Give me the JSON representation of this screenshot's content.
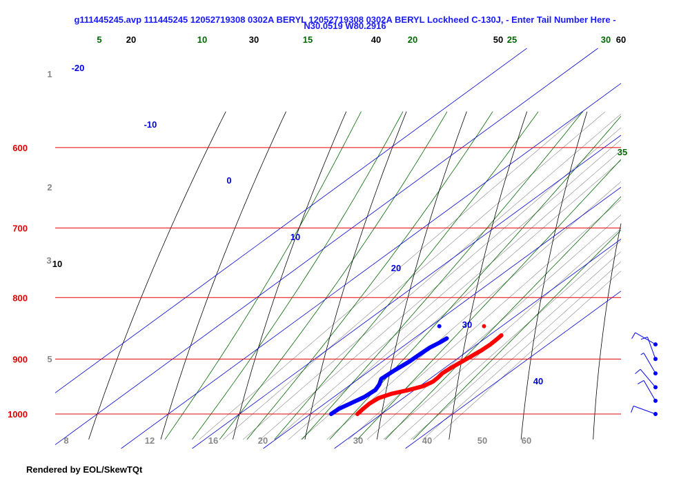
{
  "header": {
    "title_line1": "g111445245.avp 111445245 12052719308 0302A BERYL 12052719308 0302A BERYL Lockheed C-130J, - Enter Tail Number Here -",
    "title_line2": "N30.0519 W80.2916"
  },
  "footer": {
    "text": "Rendered by EOL/SkewTQt"
  },
  "colors": {
    "isobar": "#e00000",
    "isotherm": "#0000dd",
    "dry_adiabat": "#000000",
    "moist_adiabat": "#006600",
    "mixing_ratio": "#888888",
    "temperature": "#ff0000",
    "dewpoint": "#0000ff",
    "wind": "#0000ff"
  },
  "chart_data": {
    "type": "line",
    "xlabel": "",
    "ylabel": "",
    "ylim": [
      1020,
      600
    ],
    "isobars": [
      {
        "p": 600,
        "label": "600"
      },
      {
        "p": 700,
        "label": "700"
      },
      {
        "p": 800,
        "label": "800"
      },
      {
        "p": 900,
        "label": "900"
      },
      {
        "p": 1000,
        "label": "1000"
      }
    ],
    "isotherms": [
      -20,
      -10,
      0,
      10,
      20,
      30,
      40
    ],
    "isotherm_labels": [
      "-20",
      "-10",
      "0",
      "10",
      "20",
      "30",
      "40"
    ],
    "dry_adiabat_labels": [
      {
        "label": "20",
        "at": "top"
      },
      {
        "label": "30",
        "at": "top"
      },
      {
        "label": "40",
        "at": "top"
      },
      {
        "label": "50",
        "at": "top"
      },
      {
        "label": "60",
        "at": "top"
      },
      {
        "label": "10",
        "at": "left"
      }
    ],
    "moist_adiabat_labels": [
      {
        "label": "5",
        "at": "top"
      },
      {
        "label": "10",
        "at": "top"
      },
      {
        "label": "15",
        "at": "top"
      },
      {
        "label": "20",
        "at": "top"
      },
      {
        "label": "25",
        "at": "top"
      },
      {
        "label": "30",
        "at": "top"
      },
      {
        "label": "35",
        "at": "right"
      }
    ],
    "mixing_ratio_labels": [
      "8",
      "12",
      "16",
      "20",
      "30",
      "40",
      "50",
      "60"
    ],
    "height_labels": [
      "1",
      "2",
      "3",
      "5"
    ],
    "series": [
      {
        "name": "",
        "role": "temperature",
        "points": [
          {
            "p": 1000,
            "t": 26.6
          },
          {
            "p": 990,
            "t": 26.4
          },
          {
            "p": 980,
            "t": 26.3
          },
          {
            "p": 970,
            "t": 26.5
          },
          {
            "p": 962,
            "t": 27.5
          },
          {
            "p": 955,
            "t": 29.2
          },
          {
            "p": 948,
            "t": 30.5
          },
          {
            "p": 940,
            "t": 31.0
          },
          {
            "p": 932,
            "t": 30.9
          },
          {
            "p": 925,
            "t": 30.7
          },
          {
            "p": 915,
            "t": 30.9
          },
          {
            "p": 905,
            "t": 31.2
          },
          {
            "p": 895,
            "t": 31.5
          },
          {
            "p": 885,
            "t": 31.8
          },
          {
            "p": 875,
            "t": 31.9
          },
          {
            "p": 865,
            "t": 31.8
          },
          {
            "p": 860,
            "t": 31.7
          }
        ],
        "isolated": {
          "p": 845,
          "t": 27.5
        }
      },
      {
        "name": "",
        "role": "dewpoint",
        "points": [
          {
            "p": 1000,
            "t": 22.9
          },
          {
            "p": 990,
            "t": 23.0
          },
          {
            "p": 980,
            "t": 23.6
          },
          {
            "p": 968,
            "t": 24.3
          },
          {
            "p": 955,
            "t": 24.5
          },
          {
            "p": 945,
            "t": 24.0
          },
          {
            "p": 935,
            "t": 23.2
          },
          {
            "p": 920,
            "t": 23.4
          },
          {
            "p": 905,
            "t": 23.8
          },
          {
            "p": 890,
            "t": 23.9
          },
          {
            "p": 880,
            "t": 24.0
          },
          {
            "p": 872,
            "t": 24.4
          },
          {
            "p": 865,
            "t": 24.6
          }
        ],
        "isolated": {
          "p": 845,
          "t": 21.2
        }
      }
    ],
    "wind_barbs": [
      {
        "p": 1000,
        "dir": 290,
        "speed": 10
      },
      {
        "p": 975,
        "dir": 330,
        "speed": 10
      },
      {
        "p": 950,
        "dir": 320,
        "speed": 10
      },
      {
        "p": 925,
        "dir": 330,
        "speed": 5
      },
      {
        "p": 900,
        "dir": 340,
        "speed": 10
      },
      {
        "p": 875,
        "dir": 300,
        "speed": 10
      }
    ]
  }
}
